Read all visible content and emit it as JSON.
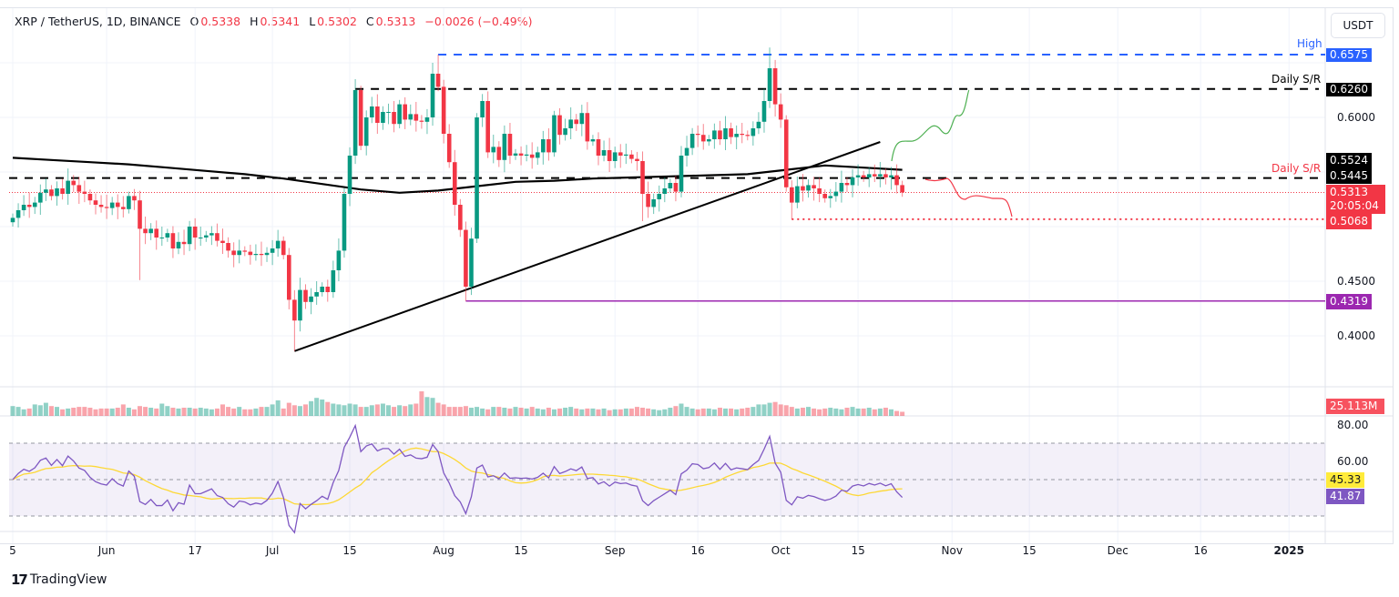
{
  "header": {
    "symbol": "XRP / TetherUS, 1D, BINANCE",
    "o_label": "O",
    "o": "0.5338",
    "h_label": "H",
    "h": "0.5341",
    "l_label": "L",
    "l": "0.5302",
    "c_label": "C",
    "c": "0.5313",
    "change": "−0.0026 (−0.49%)"
  },
  "currency_button": "USDT",
  "price_axis": [
    "0.6000",
    "0.4500",
    "0.4000"
  ],
  "rsi_axis": [
    "80.00",
    "60.00"
  ],
  "levels": {
    "high": {
      "label": "High",
      "value": "0.6575",
      "color": "#2962ff"
    },
    "sr_upper": {
      "label": "Daily S/R",
      "value": "0.6260",
      "color": "#000000"
    },
    "ma_last": {
      "value": "0.5524",
      "color": "#000000"
    },
    "sr_lower": {
      "label": "Daily S/R",
      "value": "0.5445",
      "color": "#000000",
      "label_color": "#f23645"
    },
    "last_price": {
      "value": "0.5313",
      "countdown": "20:05:04",
      "color": "#f23645"
    },
    "support": {
      "value": "0.5068",
      "color": "#f23645"
    },
    "aug_low": {
      "value": "0.4319",
      "color": "#9c27b0"
    },
    "volume": {
      "value": "25.113M",
      "color": "#f7525f"
    },
    "rsi_ma": {
      "value": "45.33",
      "color": "#ffeb3b"
    },
    "rsi": {
      "value": "41.87",
      "color": "#7e57c2"
    }
  },
  "x_ticks": [
    {
      "label": "5",
      "date": "2024-05-15"
    },
    {
      "label": "Jun",
      "date": "2024-06-01"
    },
    {
      "label": "17",
      "date": "2024-06-17"
    },
    {
      "label": "Jul",
      "date": "2024-07-01"
    },
    {
      "label": "15",
      "date": "2024-07-15"
    },
    {
      "label": "Aug",
      "date": "2024-08-01"
    },
    {
      "label": "15",
      "date": "2024-08-15"
    },
    {
      "label": "Sep",
      "date": "2024-09-01"
    },
    {
      "label": "16",
      "date": "2024-09-16"
    },
    {
      "label": "Oct",
      "date": "2024-10-01"
    },
    {
      "label": "15",
      "date": "2024-10-15"
    },
    {
      "label": "Nov",
      "date": "2024-11-01"
    },
    {
      "label": "15",
      "date": "2024-11-15"
    },
    {
      "label": "Dec",
      "date": "2024-12-01"
    },
    {
      "label": "16",
      "date": "2024-12-16"
    },
    {
      "label": "2025",
      "date": "2025-01-01"
    }
  ],
  "chart_data": {
    "type": "candlestick",
    "start_date": "2024-05-15",
    "interval": "1D",
    "colors": {
      "up": "#089981",
      "down": "#f23645",
      "ma": "#000000",
      "rsi": "#7e57c2",
      "rsi_ma": "#fdd835"
    },
    "close": [
      0.508,
      0.515,
      0.52,
      0.518,
      0.522,
      0.531,
      0.534,
      0.528,
      0.535,
      0.53,
      0.542,
      0.538,
      0.532,
      0.53,
      0.524,
      0.52,
      0.518,
      0.517,
      0.522,
      0.518,
      0.516,
      0.528,
      0.524,
      0.498,
      0.494,
      0.498,
      0.49,
      0.49,
      0.494,
      0.48,
      0.486,
      0.484,
      0.5,
      0.49,
      0.49,
      0.492,
      0.494,
      0.487,
      0.485,
      0.478,
      0.474,
      0.478,
      0.477,
      0.474,
      0.475,
      0.474,
      0.476,
      0.48,
      0.487,
      0.474,
      0.433,
      0.414,
      0.442,
      0.431,
      0.436,
      0.44,
      0.445,
      0.44,
      0.46,
      0.478,
      0.53,
      0.565,
      0.625,
      0.574,
      0.6,
      0.61,
      0.595,
      0.605,
      0.605,
      0.594,
      0.612,
      0.598,
      0.603,
      0.597,
      0.596,
      0.6,
      0.64,
      0.628,
      0.585,
      0.559,
      0.52,
      0.497,
      0.445,
      0.489,
      0.6,
      0.615,
      0.568,
      0.573,
      0.561,
      0.585,
      0.565,
      0.567,
      0.565,
      0.566,
      0.563,
      0.568,
      0.58,
      0.568,
      0.602,
      0.584,
      0.59,
      0.598,
      0.594,
      0.604,
      0.578,
      0.58,
      0.565,
      0.57,
      0.56,
      0.568,
      0.565,
      0.566,
      0.562,
      0.56,
      0.53,
      0.518,
      0.525,
      0.53,
      0.535,
      0.54,
      0.532,
      0.565,
      0.572,
      0.585,
      0.584,
      0.578,
      0.58,
      0.588,
      0.58,
      0.59,
      0.582,
      0.585,
      0.584,
      0.583,
      0.59,
      0.596,
      0.615,
      0.645,
      0.612,
      0.598,
      0.536,
      0.522,
      0.537,
      0.533,
      0.538,
      0.535,
      0.53,
      0.526,
      0.528,
      0.532,
      0.54,
      0.538,
      0.545,
      0.547,
      0.545,
      0.548,
      0.546,
      0.548,
      0.545,
      0.547,
      0.538,
      0.5313
    ],
    "notable_extremes": [
      {
        "date": "2024-06-07",
        "low": 0.451
      },
      {
        "date": "2024-07-05",
        "low": 0.386
      },
      {
        "date": "2024-07-31",
        "high": 0.6575
      },
      {
        "date": "2024-08-05",
        "low": 0.4319
      },
      {
        "date": "2024-09-06",
        "low": 0.505
      },
      {
        "date": "2024-09-29",
        "high": 0.664
      },
      {
        "date": "2024-10-03",
        "low": 0.5068
      }
    ],
    "volume_millions": [
      60,
      55,
      40,
      45,
      70,
      65,
      80,
      60,
      55,
      40,
      45,
      50,
      55,
      55,
      50,
      40,
      45,
      45,
      45,
      50,
      70,
      50,
      40,
      60,
      55,
      50,
      45,
      75,
      60,
      50,
      45,
      50,
      50,
      45,
      50,
      45,
      40,
      45,
      70,
      55,
      45,
      55,
      40,
      40,
      45,
      55,
      55,
      70,
      95,
      45,
      80,
      65,
      60,
      70,
      90,
      110,
      100,
      85,
      75,
      70,
      65,
      75,
      70,
      55,
      55,
      65,
      70,
      75,
      65,
      55,
      65,
      60,
      70,
      75,
      150,
      115,
      110,
      80,
      70,
      55,
      55,
      55,
      60,
      50,
      55,
      45,
      40,
      55,
      55,
      50,
      45,
      55,
      50,
      45,
      55,
      45,
      40,
      50,
      40,
      45,
      50,
      55,
      45,
      40,
      45,
      45,
      40,
      45,
      35,
      40,
      40,
      45,
      45,
      55,
      50,
      45,
      40,
      35,
      40,
      50,
      60,
      75,
      55,
      45,
      40,
      45,
      45,
      40,
      50,
      45,
      45,
      40,
      45,
      50,
      55,
      70,
      70,
      80,
      85,
      70,
      65,
      55,
      45,
      50,
      55,
      45,
      40,
      45,
      50,
      45,
      40,
      50,
      55,
      45,
      45,
      50,
      40,
      45,
      50,
      40,
      30,
      25.113
    ],
    "ma_weekly": [
      0.563,
      0.561,
      0.559,
      0.557,
      0.554,
      0.551,
      0.548,
      0.544,
      0.539,
      0.534,
      0.531,
      0.533,
      0.537,
      0.541,
      0.542,
      0.544,
      0.545,
      0.546,
      0.547,
      0.548,
      0.552,
      0.556,
      0.554,
      0.552
    ],
    "trendline": {
      "from": {
        "date": "2024-07-05",
        "price": 0.386
      },
      "to": {
        "date": "2024-10-19",
        "price": 0.5775
      }
    },
    "price_range": [
      0.37,
      0.67
    ],
    "rsi_range": [
      20,
      90
    ],
    "rsi_bands": [
      70,
      50,
      30
    ]
  }
}
